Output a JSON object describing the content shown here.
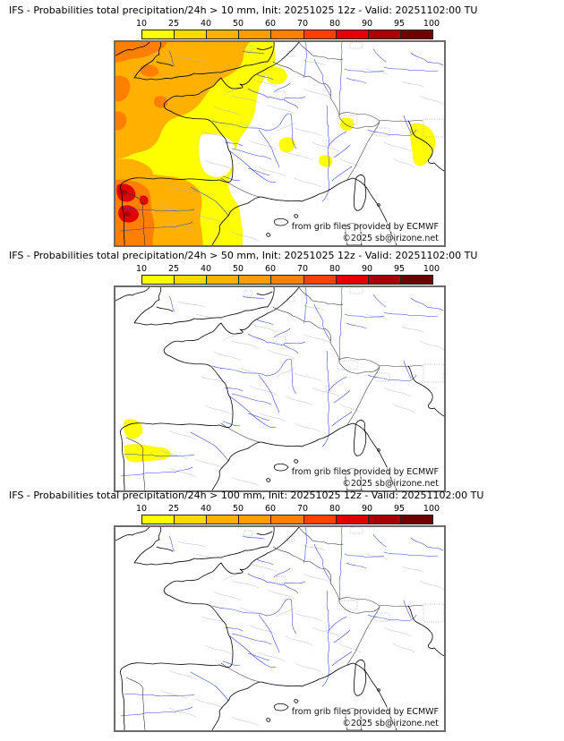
{
  "page": {
    "background": "#ffffff"
  },
  "panels": [
    {
      "id": "p10",
      "title": "IFS - Probabilities total precipitation/24h > 10 mm, Init: 20251025 12z - Valid: 20251102:00 TU",
      "threshold_mm": "10"
    },
    {
      "id": "p50",
      "title": "IFS - Probabilities total precipitation/24h > 50 mm, Init: 20251025 12z - Valid: 20251102:00 TU",
      "threshold_mm": "50"
    },
    {
      "id": "p100",
      "title": "IFS - Probabilities total precipitation/24h > 100 mm, Init: 20251025 12z - Valid: 20251102:00 TU",
      "threshold_mm": "100"
    }
  ],
  "colorbar": {
    "ticks": [
      "10",
      "25",
      "40",
      "50",
      "60",
      "70",
      "80",
      "90",
      "95",
      "100"
    ],
    "colors": [
      "#fefe00",
      "#ffd800",
      "#ffb000",
      "#ff9c00",
      "#ff7f00",
      "#ff4000",
      "#e00000",
      "#a80000",
      "#6e0000"
    ],
    "border_color": "#222222"
  },
  "map": {
    "attribution_line1": "from grib files provided by ECMWF",
    "attribution_line2": "©2025 sb@irizone.net",
    "sea_land_color": "#ffffff",
    "coast_color": "#000000",
    "river_color": "#3344dd",
    "admin_color": "#b5b5b5",
    "country_border_color": "#3a3a3a",
    "frame_color": "#6b6b6b",
    "urban_color": "#a8a8a8"
  }
}
